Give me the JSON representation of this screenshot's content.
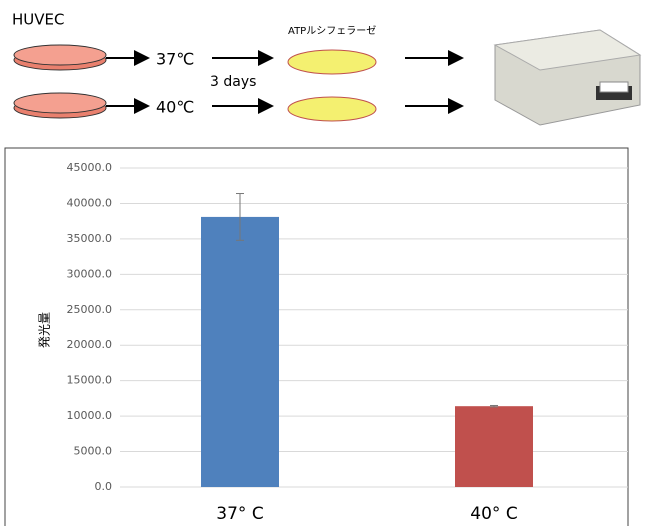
{
  "diagram": {
    "cell": "HUVEC",
    "temp_a": "37℃",
    "temp_b": "40℃",
    "duration": "3 days",
    "reagent": "ATPルシフェラーゼ"
  },
  "chart_data": {
    "type": "bar",
    "ylabel": "発光量",
    "categories": [
      "37° C",
      "40° C"
    ],
    "values": [
      38100,
      11400
    ],
    "errors": [
      3300,
      100
    ],
    "colors": [
      "#4f81bd",
      "#c0504d"
    ],
    "ylim": [
      0,
      45000
    ],
    "yticks": [
      {
        "value": 0,
        "label": "0.0"
      },
      {
        "value": 5000,
        "label": "5000.0"
      },
      {
        "value": 10000,
        "label": "10000.0"
      },
      {
        "value": 15000,
        "label": "15000.0"
      },
      {
        "value": 20000,
        "label": "20000.0"
      },
      {
        "value": 25000,
        "label": "25000.0"
      },
      {
        "value": 30000,
        "label": "30000.0"
      },
      {
        "value": 35000,
        "label": "35000.0"
      },
      {
        "value": 40000,
        "label": "40000.0"
      },
      {
        "value": 45000,
        "label": "45000.0"
      }
    ],
    "grid": true
  }
}
